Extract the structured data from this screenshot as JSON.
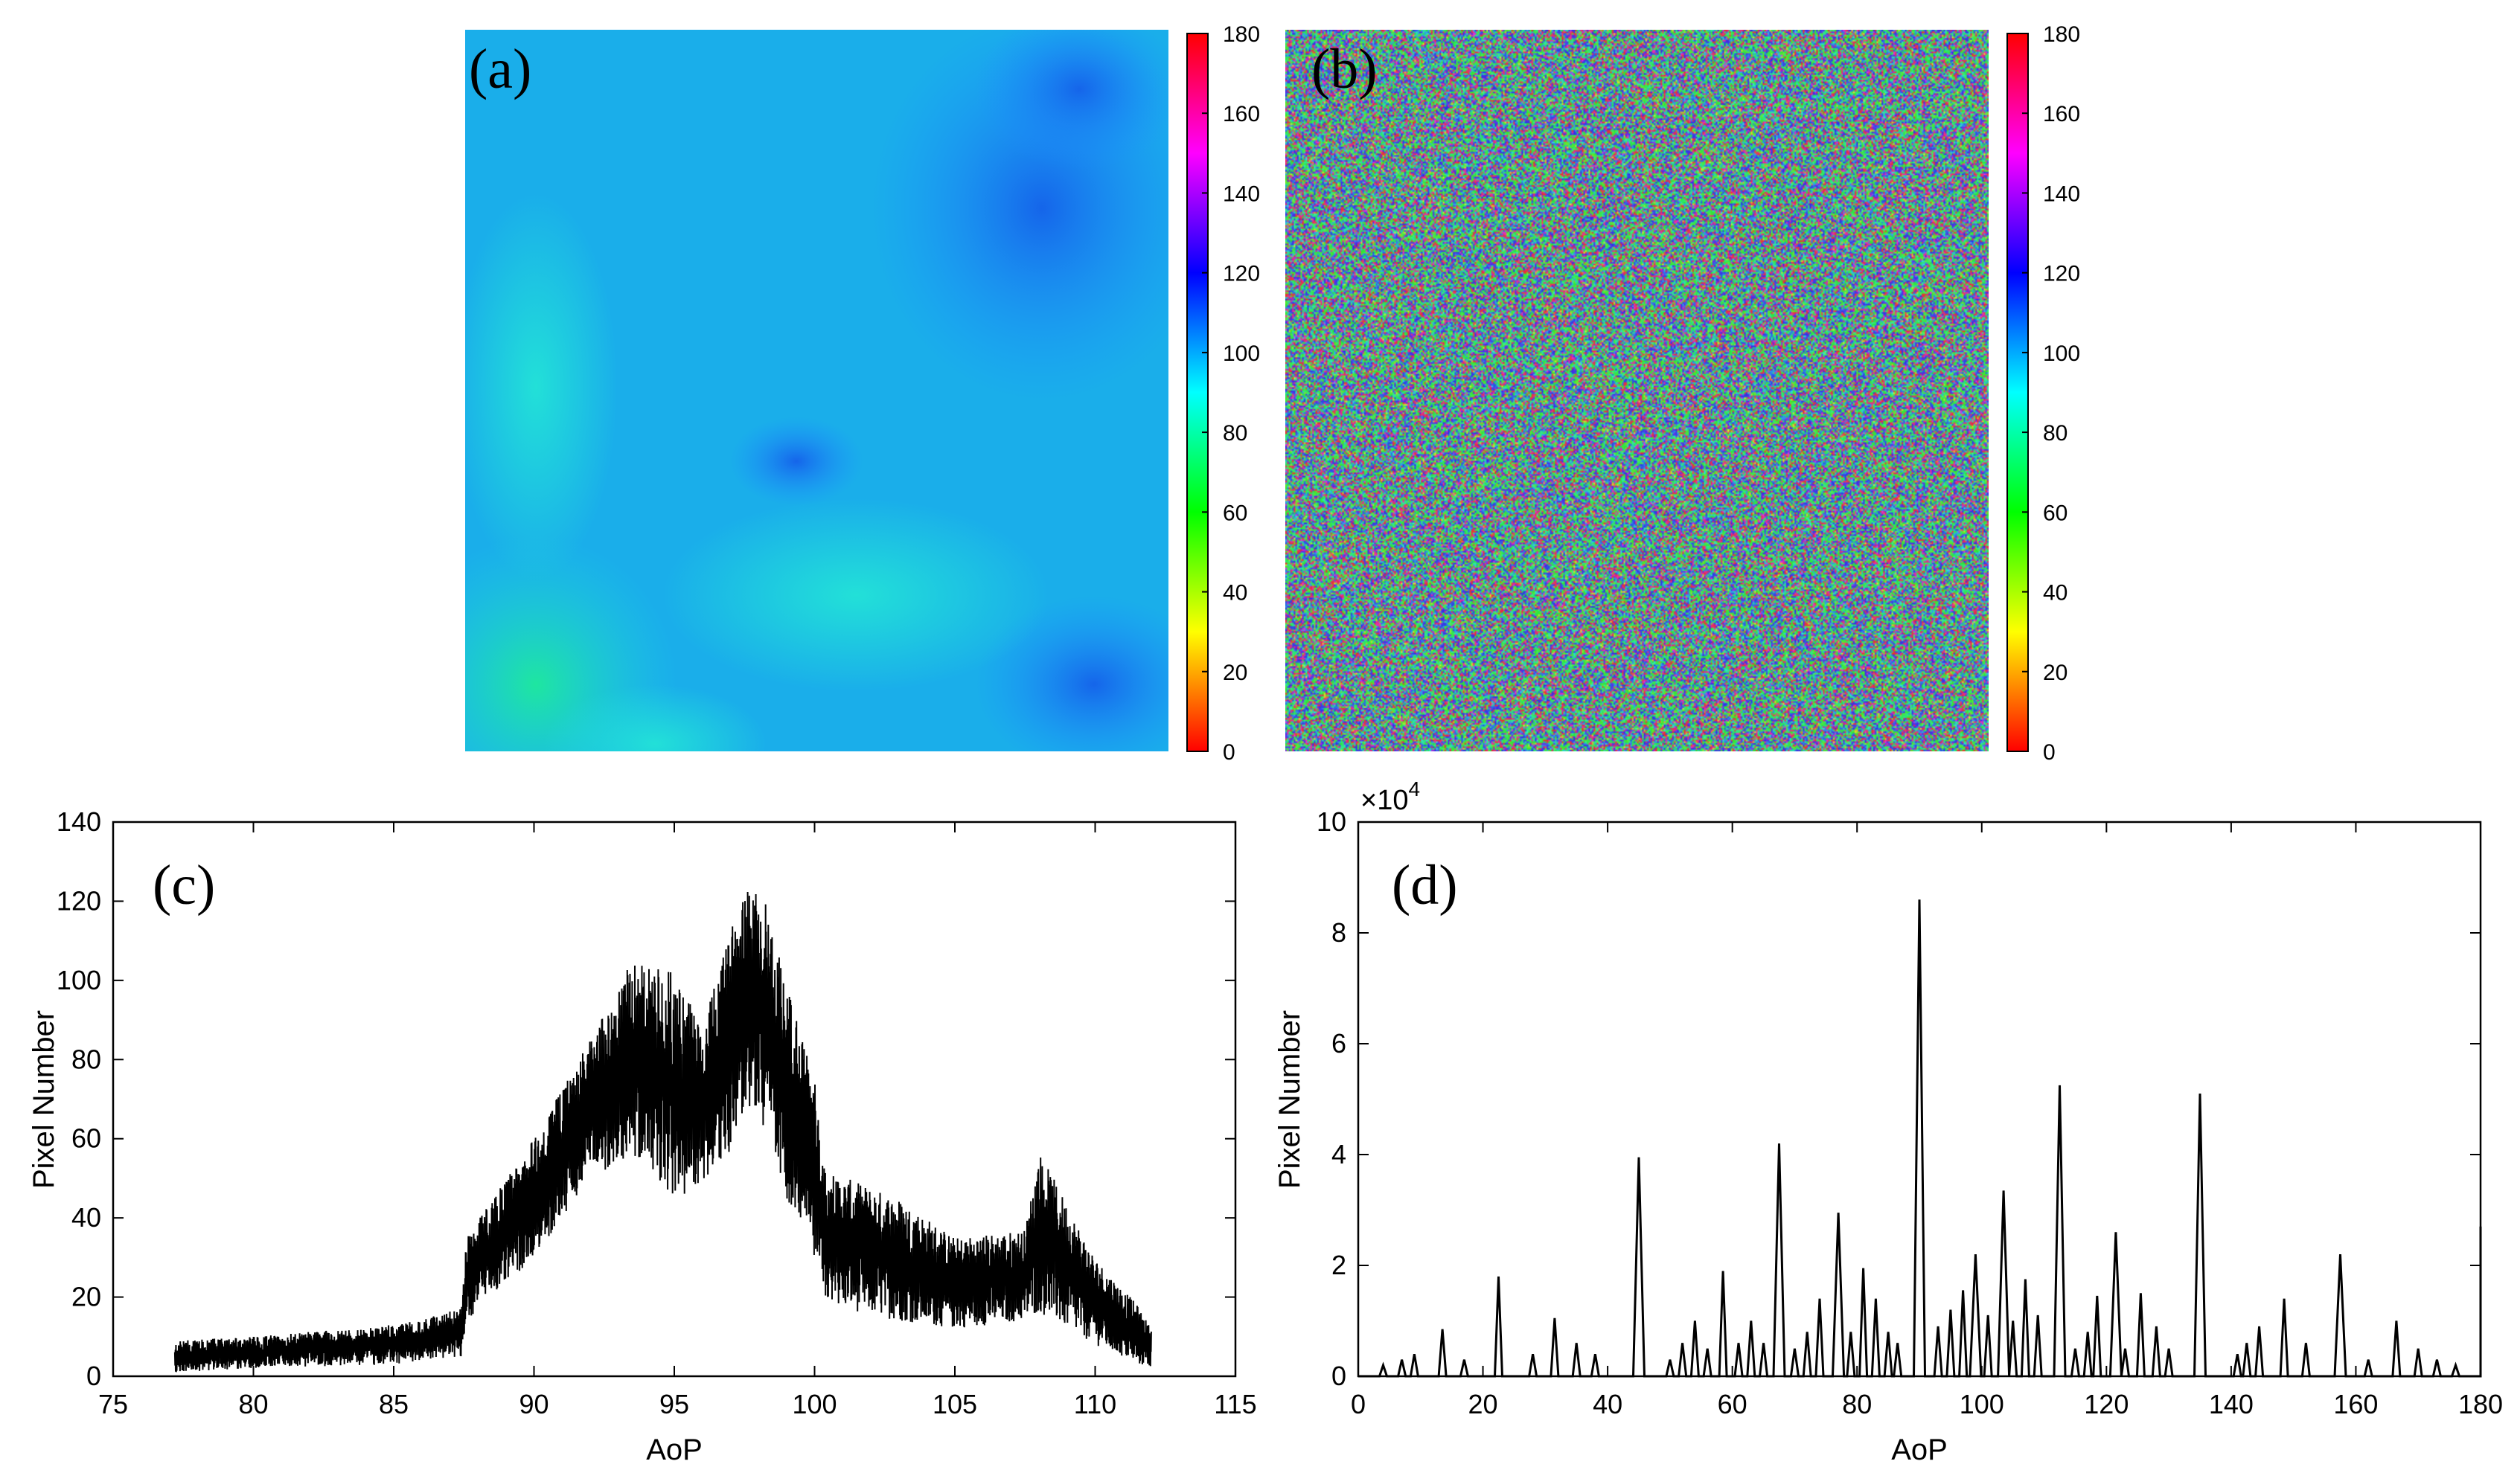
{
  "colors": {
    "axis": "#000000",
    "trace": "#000000",
    "background": "#ffffff",
    "hsv_stops": [
      "#ff0000",
      "#ffff00",
      "#00ff00",
      "#00ffff",
      "#0000ff",
      "#ff00ff",
      "#ff0000"
    ]
  },
  "chart_data": [
    {
      "panel": "(a)",
      "type": "heatmap",
      "title": "",
      "description": "Smooth AoP map, values mostly 85-120",
      "zlim": [
        0,
        180
      ],
      "colorbar_ticks": [
        "0",
        "20",
        "40",
        "60",
        "80",
        "100",
        "120",
        "140",
        "160",
        "180"
      ],
      "colormap": "hsv",
      "features": [
        {
          "region": "upper-right",
          "value": 120
        },
        {
          "region": "center-right",
          "value": 118
        },
        {
          "region": "bottom-left",
          "value": 82
        },
        {
          "region": "left",
          "value": 92
        },
        {
          "region": "bottom-right",
          "value": 118
        }
      ]
    },
    {
      "panel": "(b)",
      "type": "heatmap",
      "title": "",
      "description": "Noisy AoP map, values spread over 0-180",
      "zlim": [
        0,
        180
      ],
      "colorbar_ticks": [
        "0",
        "20",
        "40",
        "60",
        "80",
        "100",
        "120",
        "140",
        "160",
        "180"
      ],
      "colormap": "hsv"
    },
    {
      "panel": "(c)",
      "type": "line",
      "xlabel": "AoP",
      "ylabel": "Pixel Number",
      "xlim": [
        75,
        115
      ],
      "ylim": [
        0,
        140
      ],
      "xticks": [
        "75",
        "80",
        "85",
        "90",
        "95",
        "100",
        "105",
        "110",
        "115"
      ],
      "yticks": [
        "0",
        "20",
        "40",
        "60",
        "80",
        "100",
        "120",
        "140"
      ],
      "envelope": {
        "x": [
          77.2,
          80,
          85,
          87.4,
          87.6,
          90,
          92,
          93.5,
          95,
          96,
          97,
          97.5,
          98.3,
          99,
          100,
          100.4,
          103,
          105,
          107.5,
          108,
          110,
          111.5,
          112
        ],
        "upper": [
          9,
          10,
          13,
          17,
          36,
          60,
          85,
          105,
          102,
          88,
          112,
          128,
          120,
          100,
          75,
          52,
          45,
          35,
          37,
          57,
          30,
          18,
          12
        ],
        "lower": [
          1,
          2,
          3,
          5,
          14,
          30,
          50,
          56,
          45,
          48,
          55,
          68,
          62,
          45,
          30,
          18,
          14,
          12,
          14,
          16,
          8,
          3,
          2
        ]
      }
    },
    {
      "panel": "(d)",
      "type": "line",
      "xlabel": "AoP",
      "ylabel": "Pixel Number",
      "y_multiplier": "×10",
      "y_multiplier_exp": "4",
      "xlim": [
        0,
        180
      ],
      "ylim": [
        0,
        10
      ],
      "xticks": [
        "0",
        "20",
        "40",
        "60",
        "80",
        "100",
        "120",
        "140",
        "160",
        "180"
      ],
      "yticks": [
        "0",
        "2",
        "4",
        "6",
        "8",
        "10"
      ],
      "peaks": [
        {
          "x": 4,
          "y": 0.2
        },
        {
          "x": 7,
          "y": 0.3
        },
        {
          "x": 9,
          "y": 0.4
        },
        {
          "x": 13.5,
          "y": 0.85
        },
        {
          "x": 17,
          "y": 0.3
        },
        {
          "x": 22.5,
          "y": 1.8
        },
        {
          "x": 28,
          "y": 0.4
        },
        {
          "x": 31.5,
          "y": 1.05
        },
        {
          "x": 35,
          "y": 0.6
        },
        {
          "x": 38,
          "y": 0.4
        },
        {
          "x": 45,
          "y": 3.95
        },
        {
          "x": 50,
          "y": 0.3
        },
        {
          "x": 52,
          "y": 0.6
        },
        {
          "x": 54,
          "y": 1.0
        },
        {
          "x": 56,
          "y": 0.5
        },
        {
          "x": 58.5,
          "y": 1.9
        },
        {
          "x": 61,
          "y": 0.6
        },
        {
          "x": 63,
          "y": 1.0
        },
        {
          "x": 65,
          "y": 0.6
        },
        {
          "x": 67.5,
          "y": 4.2
        },
        {
          "x": 70,
          "y": 0.5
        },
        {
          "x": 72,
          "y": 0.8
        },
        {
          "x": 74,
          "y": 1.4
        },
        {
          "x": 77,
          "y": 2.95
        },
        {
          "x": 79,
          "y": 0.8
        },
        {
          "x": 81,
          "y": 1.95
        },
        {
          "x": 83,
          "y": 1.4
        },
        {
          "x": 85,
          "y": 0.8
        },
        {
          "x": 86.5,
          "y": 0.6
        },
        {
          "x": 90,
          "y": 8.6
        },
        {
          "x": 93,
          "y": 0.9
        },
        {
          "x": 95,
          "y": 1.2
        },
        {
          "x": 97,
          "y": 1.55
        },
        {
          "x": 99,
          "y": 2.2
        },
        {
          "x": 101,
          "y": 1.1
        },
        {
          "x": 103.5,
          "y": 3.35
        },
        {
          "x": 105,
          "y": 1.0
        },
        {
          "x": 107,
          "y": 1.75
        },
        {
          "x": 109,
          "y": 1.1
        },
        {
          "x": 112.5,
          "y": 5.25
        },
        {
          "x": 115,
          "y": 0.5
        },
        {
          "x": 117,
          "y": 0.8
        },
        {
          "x": 118.5,
          "y": 1.45
        },
        {
          "x": 121.5,
          "y": 2.6
        },
        {
          "x": 123,
          "y": 0.5
        },
        {
          "x": 125.5,
          "y": 1.5
        },
        {
          "x": 128,
          "y": 0.9
        },
        {
          "x": 130,
          "y": 0.5
        },
        {
          "x": 135,
          "y": 5.1
        },
        {
          "x": 141,
          "y": 0.4
        },
        {
          "x": 142.5,
          "y": 0.6
        },
        {
          "x": 144.5,
          "y": 0.9
        },
        {
          "x": 148.5,
          "y": 1.4
        },
        {
          "x": 152,
          "y": 0.6
        },
        {
          "x": 157.5,
          "y": 2.2
        },
        {
          "x": 162,
          "y": 0.3
        },
        {
          "x": 166.5,
          "y": 1.0
        },
        {
          "x": 170,
          "y": 0.5
        },
        {
          "x": 173,
          "y": 0.3
        },
        {
          "x": 176,
          "y": 0.2
        },
        {
          "x": 180,
          "y": 2.7
        }
      ]
    }
  ]
}
